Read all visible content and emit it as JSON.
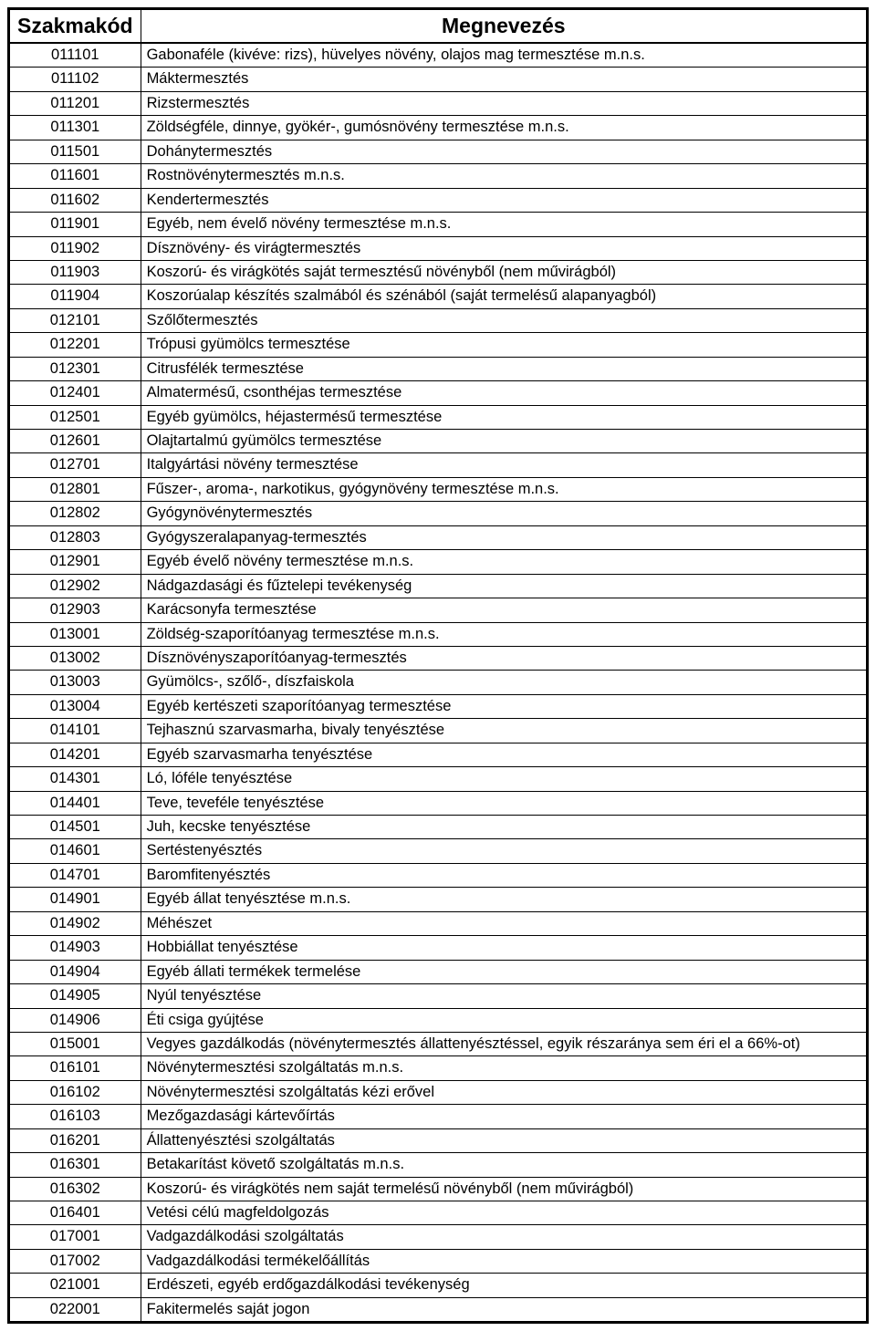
{
  "table": {
    "headers": {
      "code": "Szakmakód",
      "name": "Megnevezés"
    },
    "rows": [
      {
        "code": "011101",
        "name": "Gabonaféle (kivéve: rizs), hüvelyes növény, olajos mag termesztése m.n.s."
      },
      {
        "code": "011102",
        "name": "Máktermesztés"
      },
      {
        "code": "011201",
        "name": "Rizstermesztés"
      },
      {
        "code": "011301",
        "name": "Zöldségféle, dinnye, gyökér-, gumósnövény termesztése m.n.s."
      },
      {
        "code": "011501",
        "name": "Dohánytermesztés"
      },
      {
        "code": "011601",
        "name": "Rostnövénytermesztés m.n.s."
      },
      {
        "code": "011602",
        "name": "Kendertermesztés"
      },
      {
        "code": "011901",
        "name": "Egyéb, nem évelő növény termesztése m.n.s."
      },
      {
        "code": "011902",
        "name": "Dísznövény- és virágtermesztés"
      },
      {
        "code": "011903",
        "name": "Koszorú- és virágkötés saját termesztésű növényből (nem művirágból)"
      },
      {
        "code": "011904",
        "name": "Koszorúalap készítés szalmából és szénából (saját termelésű alapanyagból)"
      },
      {
        "code": "012101",
        "name": "Szőlőtermesztés"
      },
      {
        "code": "012201",
        "name": "Trópusi gyümölcs termesztése"
      },
      {
        "code": "012301",
        "name": "Citrusfélék termesztése"
      },
      {
        "code": "012401",
        "name": "Almatermésű, csonthéjas termesztése"
      },
      {
        "code": "012501",
        "name": "Egyéb gyümölcs, héjastermésű termesztése"
      },
      {
        "code": "012601",
        "name": "Olajtartalmú gyümölcs termesztése"
      },
      {
        "code": "012701",
        "name": "Italgyártási növény termesztése"
      },
      {
        "code": "012801",
        "name": "Fűszer-, aroma-, narkotikus, gyógynövény termesztése m.n.s."
      },
      {
        "code": "012802",
        "name": "Gyógynövénytermesztés"
      },
      {
        "code": "012803",
        "name": "Gyógyszeralapanyag-termesztés"
      },
      {
        "code": "012901",
        "name": "Egyéb évelő növény termesztése m.n.s."
      },
      {
        "code": "012902",
        "name": "Nádgazdasági és fűztelepi tevékenység"
      },
      {
        "code": "012903",
        "name": "Karácsonyfa termesztése"
      },
      {
        "code": "013001",
        "name": "Zöldség-szaporítóanyag termesztése m.n.s."
      },
      {
        "code": "013002",
        "name": "Dísznövényszaporítóanyag-termesztés"
      },
      {
        "code": "013003",
        "name": "Gyümölcs-, szőlő-, díszfaiskola"
      },
      {
        "code": "013004",
        "name": "Egyéb kertészeti szaporítóanyag termesztése"
      },
      {
        "code": "014101",
        "name": "Tejhasznú szarvasmarha, bivaly tenyésztése"
      },
      {
        "code": "014201",
        "name": "Egyéb szarvasmarha tenyésztése"
      },
      {
        "code": "014301",
        "name": "Ló, lóféle tenyésztése"
      },
      {
        "code": "014401",
        "name": "Teve, teveféle tenyésztése"
      },
      {
        "code": "014501",
        "name": "Juh, kecske tenyésztése"
      },
      {
        "code": "014601",
        "name": "Sertéstenyésztés"
      },
      {
        "code": "014701",
        "name": "Baromfitenyésztés"
      },
      {
        "code": "014901",
        "name": "Egyéb állat tenyésztése m.n.s."
      },
      {
        "code": "014902",
        "name": "Méhészet"
      },
      {
        "code": "014903",
        "name": "Hobbiállat tenyésztése"
      },
      {
        "code": "014904",
        "name": "Egyéb állati termékek termelése"
      },
      {
        "code": "014905",
        "name": "Nyúl tenyésztése"
      },
      {
        "code": "014906",
        "name": "Éti csiga gyújtése"
      },
      {
        "code": "015001",
        "name": "Vegyes gazdálkodás (növénytermesztés állattenyésztéssel, egyik részaránya sem éri el a 66%-ot)"
      },
      {
        "code": "016101",
        "name": "Növénytermesztési szolgáltatás m.n.s."
      },
      {
        "code": "016102",
        "name": "Növénytermesztési szolgáltatás kézi erővel"
      },
      {
        "code": "016103",
        "name": "Mezőgazdasági kártevőírtás"
      },
      {
        "code": "016201",
        "name": "Állattenyésztési szolgáltatás"
      },
      {
        "code": "016301",
        "name": "Betakarítást követő szolgáltatás m.n.s."
      },
      {
        "code": "016302",
        "name": "Koszorú- és virágkötés nem saját termelésű növényből (nem művirágból)"
      },
      {
        "code": "016401",
        "name": "Vetési célú magfeldolgozás"
      },
      {
        "code": "017001",
        "name": "Vadgazdálkodási szolgáltatás"
      },
      {
        "code": "017002",
        "name": "Vadgazdálkodási termékelőállítás"
      },
      {
        "code": "021001",
        "name": "Erdészeti, egyéb erdőgazdálkodási tevékenység"
      },
      {
        "code": "022001",
        "name": "Fakitermelés saját jogon"
      }
    ]
  },
  "style": {
    "border_color": "#000000",
    "background_color": "#ffffff",
    "font_family": "Arial",
    "header_fontsize": 23,
    "cell_fontsize": 16.5,
    "code_column_width": 135,
    "outer_border_width": 3,
    "inner_border_width": 1
  }
}
